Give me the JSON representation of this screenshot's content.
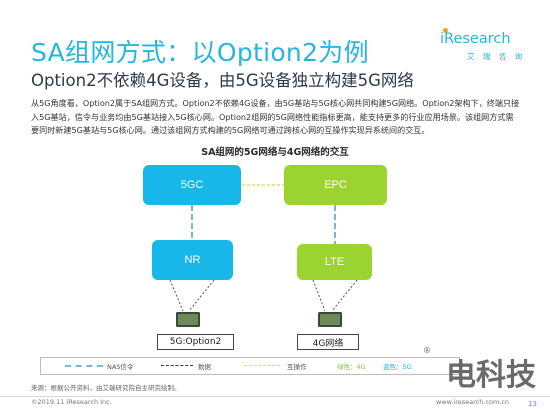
{
  "header": {
    "title": "SA组网方式：以Option2为例",
    "subtitle": "Option2不依赖4G设备，由5G设备独立构建5G网络"
  },
  "logo": {
    "word": "iResearch",
    "cn": "艾 瑞 咨 询"
  },
  "body": {
    "paragraph": "从5G角度看，Option2属于SA组网方式。Option2不依赖4G设备，由5G基站与5G核心网共同构建5G网络。Option2架构下，终端只接入5G基站，信令与业务均由5G基站接入5G核心网。Option2组网的5G网络性能指标更高，能支持更多的行业应用场景。该组网方式需要同时新建5G基站与5G核心网。通过该组网方式构建的5G网络可通过跨核心网的互操作实现异系统间的交互。"
  },
  "diagram": {
    "title": "SA组网的5G网络与4G网络的交互",
    "nodes": {
      "core_5g": "5GC",
      "core_4g": "EPC",
      "ran_5g": "NR",
      "ran_4g": "LTE"
    },
    "devices": {
      "left_label": "5G:Option2",
      "right_label": "4G网络"
    },
    "colors": {
      "blue": "#17b7ea",
      "green": "#9bd431",
      "nas_line": "#7fb3d6",
      "data_line": "#3a3a3a",
      "interop_line": "#d6e94a"
    }
  },
  "legend": {
    "nas": "NAS信令",
    "data": "数据",
    "interop": "互操作",
    "green_4g": "绿色：4G",
    "blue_5g": "蓝色：5G"
  },
  "footer": {
    "source": "来源：根据公开资料，由艾瑞研究院自主研究绘制。",
    "copyright": "©2019.11 iResearch Inc.",
    "site": "www.iresearch.com.cn",
    "page": "13"
  },
  "watermark": {
    "text": "电科技",
    "mark": "®"
  }
}
